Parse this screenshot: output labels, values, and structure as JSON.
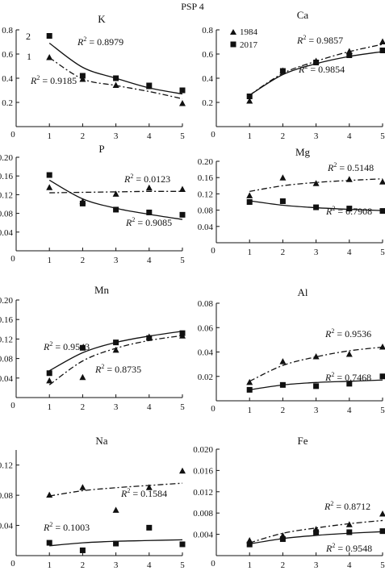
{
  "figure": {
    "title": "PSP 4",
    "legend_years": [
      "1984",
      "2017"
    ],
    "legend_tags": [
      "2",
      "1"
    ]
  },
  "colors": {
    "ink": "#111111",
    "marker": "#111111"
  },
  "chart_data": [
    {
      "type": "scatter",
      "title": "K",
      "xlim": [
        0,
        5
      ],
      "ylim": [
        0,
        0.8
      ],
      "x_ticks": [
        "0",
        "1",
        "2",
        "3",
        "4",
        "5"
      ],
      "y_ticks": [
        "0.2",
        "0.4",
        "0.6",
        "0.8"
      ],
      "series": [
        {
          "name": "1984",
          "marker": "triangle",
          "line": "dashdot",
          "x": [
            1,
            2,
            3,
            4,
            5
          ],
          "y": [
            0.57,
            0.39,
            0.34,
            0.33,
            0.19
          ],
          "fit": [
            0.57,
            0.394,
            0.34,
            0.29,
            0.23
          ],
          "r2": "0.9185"
        },
        {
          "name": "2017",
          "marker": "square",
          "line": "solid",
          "x": [
            1,
            2,
            3,
            4,
            5
          ],
          "y": [
            0.75,
            0.42,
            0.4,
            0.34,
            0.3
          ],
          "fit": [
            0.69,
            0.49,
            0.4,
            0.32,
            0.27
          ],
          "r2": "0.8979"
        }
      ]
    },
    {
      "type": "scatter",
      "title": "Ca",
      "xlim": [
        0,
        5
      ],
      "ylim": [
        0,
        0.8
      ],
      "x_ticks": [
        "0",
        "1",
        "2",
        "3",
        "4",
        "5"
      ],
      "y_ticks": [
        "0.2",
        "0.4",
        "0.6",
        "0.8"
      ],
      "legend": [
        "1984",
        "2017"
      ],
      "series": [
        {
          "name": "1984",
          "marker": "triangle",
          "line": "dashdot",
          "x": [
            1,
            2,
            3,
            4,
            5
          ],
          "y": [
            0.21,
            0.46,
            0.54,
            0.62,
            0.7
          ],
          "fit": [
            0.26,
            0.44,
            0.54,
            0.62,
            0.68
          ],
          "r2": "0.9857"
        },
        {
          "name": "2017",
          "marker": "square",
          "line": "solid",
          "x": [
            1,
            2,
            3,
            4,
            5
          ],
          "y": [
            0.25,
            0.46,
            0.53,
            0.59,
            0.63
          ],
          "fit": [
            0.26,
            0.43,
            0.52,
            0.58,
            0.62
          ],
          "r2": "0.9854"
        }
      ]
    },
    {
      "type": "scatter",
      "title": "P",
      "xlim": [
        0,
        5
      ],
      "ylim": [
        0,
        0.2
      ],
      "x_ticks": [
        "0",
        "1",
        "2",
        "3",
        "4",
        "5"
      ],
      "y_ticks": [
        "0.04",
        "0.08",
        "0.12",
        "0.16",
        "0.20"
      ],
      "series": [
        {
          "name": "1984",
          "marker": "triangle",
          "line": "dashdot",
          "x": [
            1,
            2,
            3,
            4,
            5
          ],
          "y": [
            0.135,
            0.105,
            0.121,
            0.134,
            0.131
          ],
          "fit": [
            0.124,
            0.125,
            0.126,
            0.127,
            0.127
          ],
          "r2": "0.0123"
        },
        {
          "name": "2017",
          "marker": "square",
          "line": "solid",
          "x": [
            1,
            2,
            3,
            4,
            5
          ],
          "y": [
            0.162,
            0.101,
            0.088,
            0.082,
            0.077
          ],
          "fit": [
            0.151,
            0.111,
            0.091,
            0.078,
            0.067
          ],
          "r2": "0.9085"
        }
      ]
    },
    {
      "type": "scatter",
      "title": "Mg",
      "xlim": [
        0,
        5
      ],
      "ylim": [
        0,
        0.2
      ],
      "x_ticks": [
        "0",
        "1",
        "2",
        "3",
        "4",
        "5"
      ],
      "y_ticks": [
        "0.04",
        "0.08",
        "0.12",
        "0.16",
        "0.20"
      ],
      "series": [
        {
          "name": "1984",
          "marker": "triangle",
          "line": "dashdot",
          "x": [
            1,
            2,
            3,
            4,
            5
          ],
          "y": [
            0.115,
            0.159,
            0.145,
            0.155,
            0.149
          ],
          "fit": [
            0.126,
            0.14,
            0.148,
            0.153,
            0.157
          ],
          "r2": "0.5148"
        },
        {
          "name": "2017",
          "marker": "square",
          "line": "solid",
          "x": [
            1,
            2,
            3,
            4,
            5
          ],
          "y": [
            0.1,
            0.102,
            0.087,
            0.084,
            0.078
          ],
          "fit": [
            0.103,
            0.092,
            0.086,
            0.082,
            0.079
          ],
          "r2": "0.7908"
        }
      ]
    },
    {
      "type": "scatter",
      "title": "Mn",
      "xlim": [
        0,
        5
      ],
      "ylim": [
        0,
        0.2
      ],
      "x_ticks": [
        "0",
        "1",
        "2",
        "3",
        "4",
        "5"
      ],
      "y_ticks": [
        "0.04",
        "0.08",
        "0.12",
        "0.16",
        "0.20"
      ],
      "series": [
        {
          "name": "1984",
          "marker": "triangle",
          "line": "dashdot",
          "x": [
            1,
            2,
            3,
            4,
            5
          ],
          "y": [
            0.034,
            0.041,
            0.097,
            0.124,
            0.126
          ],
          "fit": [
            0.026,
            0.075,
            0.101,
            0.117,
            0.127
          ],
          "r2": "0.8735"
        },
        {
          "name": "2017",
          "marker": "square",
          "line": "solid",
          "x": [
            1,
            2,
            3,
            4,
            5
          ],
          "y": [
            0.05,
            0.102,
            0.113,
            0.122,
            0.132
          ],
          "fit": [
            0.055,
            0.092,
            0.113,
            0.126,
            0.136
          ],
          "r2": "0.9543"
        }
      ]
    },
    {
      "type": "scatter",
      "title": "Al",
      "xlim": [
        0,
        5
      ],
      "ylim": [
        0,
        0.08
      ],
      "x_ticks": [
        "0",
        "1",
        "2",
        "3",
        "4",
        "5"
      ],
      "y_ticks": [
        "0.02",
        "0.04",
        "0.06",
        "0.08"
      ],
      "series": [
        {
          "name": "1984",
          "marker": "triangle",
          "line": "dashdot",
          "x": [
            1,
            2,
            3,
            4,
            5
          ],
          "y": [
            0.015,
            0.032,
            0.036,
            0.038,
            0.044
          ],
          "fit": [
            0.016,
            0.029,
            0.036,
            0.041,
            0.044
          ],
          "r2": "0.9536"
        },
        {
          "name": "2017",
          "marker": "square",
          "line": "solid",
          "x": [
            1,
            2,
            3,
            4,
            5
          ],
          "y": [
            0.009,
            0.013,
            0.012,
            0.014,
            0.02
          ],
          "fit": [
            0.009,
            0.013,
            0.015,
            0.016,
            0.017
          ],
          "r2": "0.7468"
        }
      ]
    },
    {
      "type": "scatter",
      "title": "Na",
      "xlim": [
        0,
        5
      ],
      "ylim": [
        0,
        0.14
      ],
      "x_ticks": [
        "0",
        "1",
        "2",
        "3",
        "4",
        "5"
      ],
      "y_ticks": [
        "0.04",
        "0.08",
        "0.12"
      ],
      "series": [
        {
          "name": "1984",
          "marker": "triangle",
          "line": "dashdot",
          "x": [
            1,
            2,
            3,
            4,
            5
          ],
          "y": [
            0.08,
            0.09,
            0.06,
            0.09,
            0.112
          ],
          "fit": [
            0.079,
            0.086,
            0.09,
            0.093,
            0.096
          ],
          "r2": "0.1584"
        },
        {
          "name": "2017",
          "marker": "square",
          "line": "solid",
          "x": [
            1,
            2,
            3,
            4,
            5
          ],
          "y": [
            0.017,
            0.007,
            0.016,
            0.037,
            0.015
          ],
          "fit": [
            0.013,
            0.017,
            0.019,
            0.02,
            0.021
          ],
          "r2": "0.1003"
        }
      ]
    },
    {
      "type": "scatter",
      "title": "Fe",
      "xlim": [
        0,
        5
      ],
      "ylim": [
        0,
        0.02
      ],
      "x_ticks": [
        "0",
        "1",
        "2",
        "3",
        "4",
        "5"
      ],
      "y_ticks": [
        "0.004",
        "0.008",
        "0.012",
        "0.016",
        "0.020"
      ],
      "series": [
        {
          "name": "1984",
          "marker": "triangle",
          "line": "dashdot",
          "x": [
            1,
            2,
            3,
            4,
            5
          ],
          "y": [
            0.0028,
            0.0037,
            0.0049,
            0.0058,
            0.0078
          ],
          "fit": [
            0.0024,
            0.0042,
            0.0052,
            0.006,
            0.0066
          ],
          "r2": "0.8712"
        },
        {
          "name": "2017",
          "marker": "square",
          "line": "solid",
          "x": [
            1,
            2,
            3,
            4,
            5
          ],
          "y": [
            0.0021,
            0.0031,
            0.0044,
            0.0044,
            0.0046
          ],
          "fit": [
            0.0022,
            0.0032,
            0.0038,
            0.0042,
            0.0045
          ],
          "r2": "0.9548"
        }
      ]
    }
  ]
}
